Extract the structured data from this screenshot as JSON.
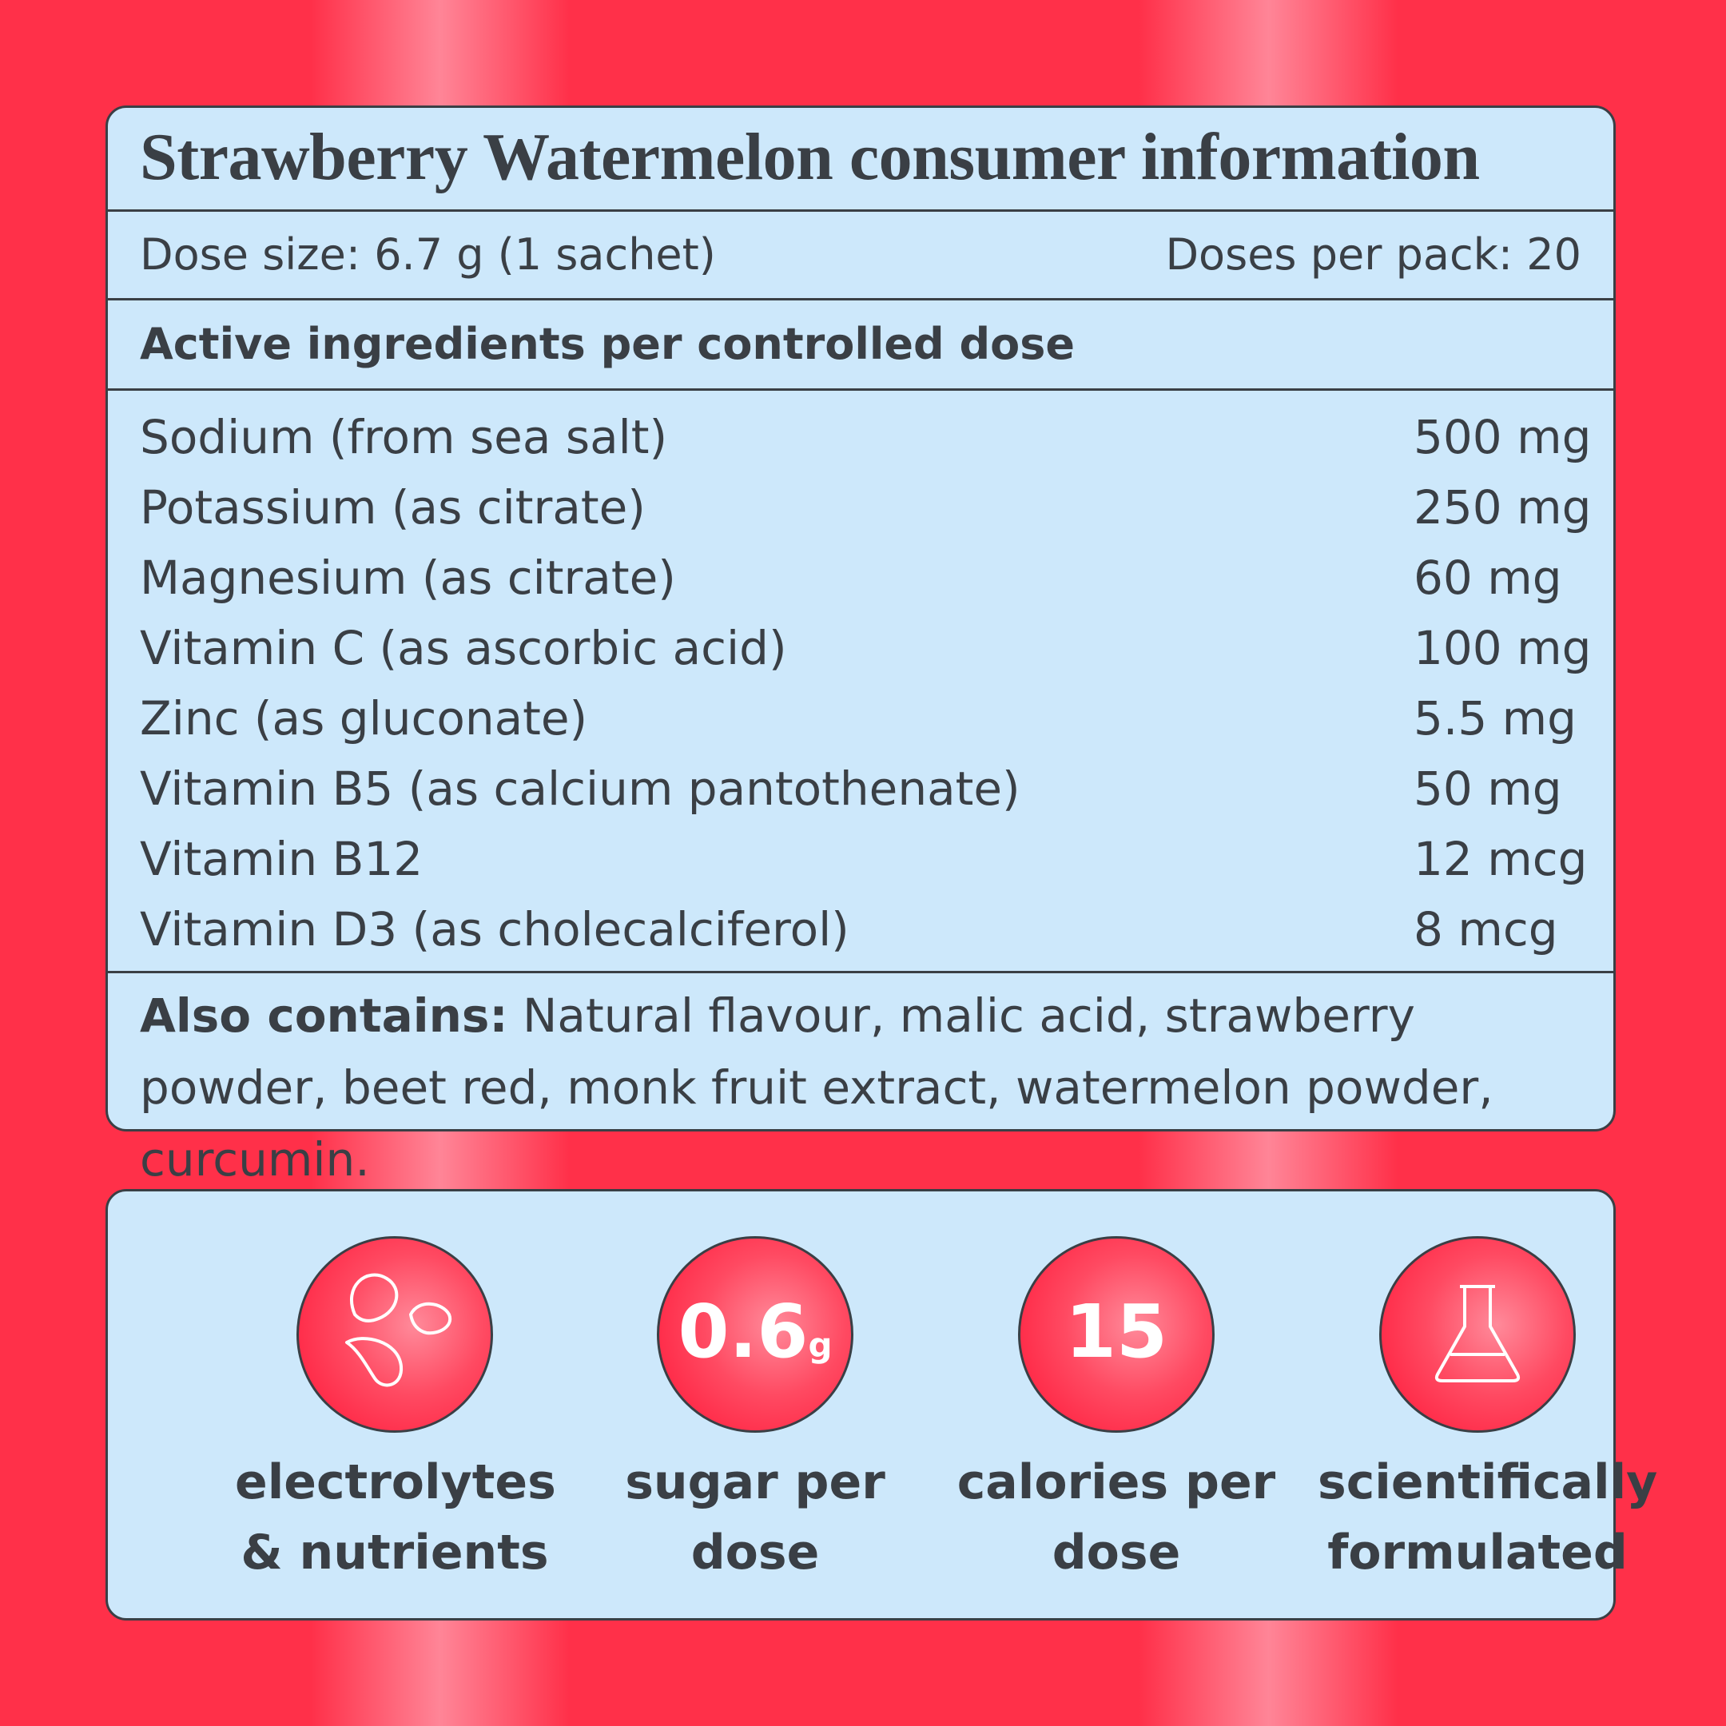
{
  "title": "Strawberry Watermelon consumer information",
  "dose_size": "Dose size: 6.7 g (1 sachet)",
  "doses_per_pack": "Doses per pack: 20",
  "active_heading": "Active ingredients per controlled dose",
  "ingredients": [
    {
      "name": "Sodium (from sea salt)",
      "amount": "500 mg"
    },
    {
      "name": "Potassium (as citrate)",
      "amount": "250 mg"
    },
    {
      "name": "Magnesium (as citrate)",
      "amount": "60 mg"
    },
    {
      "name": "Vitamin C (as ascorbic acid)",
      "amount": "100 mg"
    },
    {
      "name": "Zinc (as gluconate)",
      "amount": "5.5 mg"
    },
    {
      "name": "Vitamin B5 (as calcium pantothenate)",
      "amount": "50 mg"
    },
    {
      "name": "Vitamin B12",
      "amount": "12 mcg"
    },
    {
      "name": "Vitamin D3 (as cholecalciferol)",
      "amount": "8 mcg"
    }
  ],
  "also_contains": {
    "label": "Also contains:",
    "text": "Natural flavour, malic acid, strawberry powder, beet red, monk fruit extract, watermelon powder, curcumin."
  },
  "features": [
    {
      "label": "electrolytes & nutrients"
    },
    {
      "number": "0.6",
      "unit": "g",
      "label": "sugar per dose"
    },
    {
      "number": "15",
      "label": "calories per dose"
    },
    {
      "label": "scientifically formulated"
    }
  ]
}
